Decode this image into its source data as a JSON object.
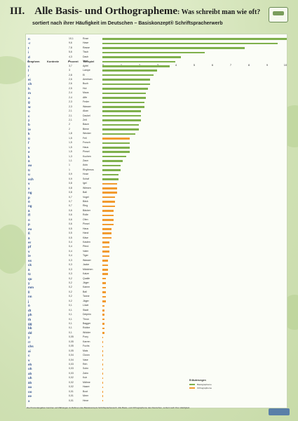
{
  "header": {
    "roman": "III.",
    "title": "Alle Basis- und Orthographeme",
    "question": ": Was schreibt man wie oft?",
    "subtitle": "sortiert nach ihrer Häufigkeit im Deutschen – Basiskonzept® Schriftspracherwerb"
  },
  "columns": {
    "graphem": "Graphem",
    "kontext": "Kontexte",
    "prozent": "Prozent",
    "beispiel": "Beispiel"
  },
  "colors": {
    "green": "#7fb04c",
    "orange": "#f29a2e"
  },
  "chart_data": {
    "type": "bar",
    "xlim": [
      0,
      10
    ],
    "ticks": [
      "0",
      "1",
      "2",
      "3",
      "4",
      "5",
      "6",
      "7",
      "8",
      "9",
      "10"
    ],
    "rows": [
      {
        "g": "n",
        "p": "",
        "v": 10.1,
        "ex": "Rose",
        "c": "green"
      },
      {
        "g": "-r",
        "p": "",
        "v": 9.6,
        "ex": "Hase",
        "c": "green"
      },
      {
        "g": "t",
        "p": "",
        "v": 7.8,
        "ex": "Rasse",
        "c": "green"
      },
      {
        "g": "i",
        "p": "",
        "v": 5.6,
        "ex": "Tisch",
        "c": "green"
      },
      {
        "g": "d",
        "p": "",
        "v": 4.3,
        "ex": "Dach",
        "c": "green"
      },
      {
        "g": "l",
        "p": "",
        "v": 4.0,
        "ex": "Insel",
        "c": "green"
      },
      {
        "g": "s",
        "p": "",
        "v": 3.7,
        "ex": "Apfel",
        "c": "green"
      },
      {
        "g": "l",
        "p": "",
        "v": 3.0,
        "ex": "Lampe",
        "c": "green"
      },
      {
        "g": "r",
        "p": "",
        "v": 2.8,
        "ex": "Ei",
        "c": "green"
      },
      {
        "g": "ei",
        "p": "",
        "v": 2.6,
        "ex": "Ameisen",
        "c": "green"
      },
      {
        "g": "ch",
        "p": "",
        "v": 2.6,
        "ex": "Buch",
        "c": "green"
      },
      {
        "g": "h",
        "p": "",
        "v": 2.5,
        "ex": "Hut",
        "c": "green"
      },
      {
        "g": "m",
        "p": "",
        "v": 2.4,
        "ex": "Maus",
        "c": "green"
      },
      {
        "g": "a",
        "p": "",
        "v": 2.4,
        "ex": "Affe",
        "c": "green"
      },
      {
        "g": "g",
        "p": "",
        "v": 2.3,
        "ex": "Feder",
        "c": "green"
      },
      {
        "g": "w",
        "p": "",
        "v": 2.3,
        "ex": "Wasser",
        "c": "green"
      },
      {
        "g": "o",
        "p": "",
        "v": 2.1,
        "ex": "Akan",
        "c": "green"
      },
      {
        "g": "c",
        "p": "",
        "v": 2.1,
        "ex": "Dackel",
        "c": "green"
      },
      {
        "g": "z",
        "p": "",
        "v": 2.1,
        "ex": "Zelt",
        "c": "green"
      },
      {
        "g": "b",
        "p": "",
        "v": 2.0,
        "ex": "Baum",
        "c": "green"
      },
      {
        "g": "ie",
        "p": "",
        "v": 2.0,
        "ex": "Biene",
        "c": "green"
      },
      {
        "g": "k",
        "p": "",
        "v": 1.8,
        "ex": "Wecker",
        "c": "green"
      },
      {
        "g": "ü",
        "p": "",
        "v": 1.5,
        "ex": "Fell",
        "c": "orange"
      },
      {
        "g": "f",
        "p": "",
        "v": 1.5,
        "ex": "Frosch",
        "c": "green"
      },
      {
        "g": "v",
        "p": "",
        "v": 1.5,
        "ex": "Haus",
        "c": "green"
      },
      {
        "g": "e",
        "p": "",
        "v": 1.5,
        "ex": "Pinsel",
        "c": "green"
      },
      {
        "g": "k",
        "p": "",
        "v": 1.3,
        "ex": "Kuchen",
        "c": "green"
      },
      {
        "g": "ä",
        "p": "",
        "v": 1.1,
        "ex": "Zaun",
        "c": "green"
      },
      {
        "g": "au",
        "p": "",
        "v": 1.0,
        "ex": "Auto",
        "c": "green"
      },
      {
        "g": "ü",
        "p": "",
        "v": 1.0,
        "ex": "Rhythmus",
        "c": "green"
      },
      {
        "g": "u",
        "p": "",
        "v": 0.9,
        "ex": "Hose",
        "c": "green"
      },
      {
        "g": "sch",
        "p": "",
        "v": 0.9,
        "ex": "Schaf",
        "c": "green"
      },
      {
        "g": "v",
        "p": "",
        "v": 0.8,
        "ex": "Igel",
        "c": "orange"
      },
      {
        "g": "x",
        "p": "",
        "v": 0.8,
        "ex": "Wiesen",
        "c": "orange"
      },
      {
        "g": "ng",
        "p": "",
        "v": 0.8,
        "ex": "Ball",
        "c": "orange"
      },
      {
        "g": "p",
        "p": "",
        "v": 0.7,
        "ex": "Vogel",
        "c": "orange"
      },
      {
        "g": "ö",
        "p": "",
        "v": 0.7,
        "ex": "Bäck",
        "c": "orange"
      },
      {
        "g": "ng",
        "p": "",
        "v": 0.7,
        "ex": "Ring",
        "c": "orange"
      },
      {
        "g": "ä",
        "p": "",
        "v": 0.6,
        "ex": "Bäcker",
        "c": "orange"
      },
      {
        "g": "ff",
        "p": "",
        "v": 0.6,
        "ex": "Rolle",
        "c": "orange"
      },
      {
        "g": "o",
        "p": "",
        "v": 0.6,
        "ex": "Ofen",
        "c": "orange"
      },
      {
        "g": "p",
        "p": "",
        "v": 0.6,
        "ex": "Pinsel",
        "c": "orange"
      },
      {
        "g": "eu",
        "p": "",
        "v": 0.5,
        "ex": "Haus",
        "c": "orange"
      },
      {
        "g": "ß",
        "p": "",
        "v": 0.5,
        "ex": "Hand",
        "c": "orange"
      },
      {
        "g": "ä",
        "p": "",
        "v": 0.5,
        "ex": "Käse",
        "c": "orange"
      },
      {
        "g": "er",
        "p": "",
        "v": 0.4,
        "ex": "Kasten",
        "c": "orange"
      },
      {
        "g": "pf",
        "p": "",
        "v": 0.4,
        "ex": "Pferd",
        "c": "orange"
      },
      {
        "g": "v",
        "p": "",
        "v": 0.4,
        "ex": "Vater",
        "c": "orange"
      },
      {
        "g": "ie",
        "p": "",
        "v": 0.4,
        "ex": "Tiger",
        "c": "orange"
      },
      {
        "g": "ss",
        "p": "",
        "v": 0.3,
        "ex": "Wasser",
        "c": "orange"
      },
      {
        "g": "ck",
        "p": "",
        "v": 0.3,
        "ex": "Jacke",
        "c": "orange"
      },
      {
        "g": "ä",
        "p": "",
        "v": 0.3,
        "ex": "Mädchen",
        "c": "orange"
      },
      {
        "g": "tz",
        "p": "",
        "v": 0.3,
        "ex": "Katze",
        "c": "orange"
      },
      {
        "g": "qu",
        "p": "",
        "v": 0.2,
        "ex": "Qualle",
        "c": "orange"
      },
      {
        "g": "y",
        "p": "",
        "v": 0.2,
        "ex": "Jäger",
        "c": "orange"
      },
      {
        "g": "mm",
        "p": "",
        "v": 0.2,
        "ex": "Kamm",
        "c": "orange"
      },
      {
        "g": "ll",
        "p": "",
        "v": 0.2,
        "ex": "Ball",
        "c": "orange"
      },
      {
        "g": "nn",
        "p": "",
        "v": 0.2,
        "ex": "Tanne",
        "c": "orange"
      },
      {
        "g": "j",
        "p": "",
        "v": 0.2,
        "ex": "Jäger",
        "c": "orange"
      },
      {
        "g": "ö",
        "p": "",
        "v": 0.1,
        "ex": "Löwe",
        "c": "orange"
      },
      {
        "g": "dt",
        "p": "",
        "v": 0.1,
        "ex": "Stadt",
        "c": "orange"
      },
      {
        "g": "ph",
        "p": "",
        "v": 0.1,
        "ex": "Delphin",
        "c": "orange"
      },
      {
        "g": "th",
        "p": "",
        "v": 0.1,
        "ex": "Thron",
        "c": "orange"
      },
      {
        "g": "gg",
        "p": "",
        "v": 0.1,
        "ex": "Bagger",
        "c": "orange"
      },
      {
        "g": "bb",
        "p": "",
        "v": 0.1,
        "ex": "Robbe",
        "c": "orange"
      },
      {
        "g": "dd",
        "p": "",
        "v": 0.1,
        "ex": "Widder",
        "c": "orange"
      },
      {
        "g": "y",
        "p": "",
        "v": 0.05,
        "ex": "Pony",
        "c": "orange"
      },
      {
        "g": "rr",
        "p": "",
        "v": 0.05,
        "ex": "Karren",
        "c": "orange"
      },
      {
        "g": "chs",
        "p": "",
        "v": 0.05,
        "ex": "Fuchs",
        "c": "orange"
      },
      {
        "g": "ai",
        "p": "",
        "v": 0.05,
        "ex": "Mais",
        "c": "orange"
      },
      {
        "g": "c",
        "p": "",
        "v": 0.04,
        "ex": "Clown",
        "c": "orange"
      },
      {
        "g": "v",
        "p": "",
        "v": 0.04,
        "ex": "Vase",
        "c": "orange"
      },
      {
        "g": "eh",
        "p": "",
        "v": 0.03,
        "ex": "Reh",
        "c": "orange"
      },
      {
        "g": "oh",
        "p": "",
        "v": 0.03,
        "ex": "Sohn",
        "c": "orange"
      },
      {
        "g": "ah",
        "p": "",
        "v": 0.03,
        "ex": "Zahn",
        "c": "orange"
      },
      {
        "g": "uh",
        "p": "",
        "v": 0.02,
        "ex": "Kuh",
        "c": "orange"
      },
      {
        "g": "äh",
        "p": "",
        "v": 0.02,
        "ex": "Mähne",
        "c": "orange"
      },
      {
        "g": "aa",
        "p": "",
        "v": 0.02,
        "ex": "Haare",
        "c": "orange"
      },
      {
        "g": "oo",
        "p": "",
        "v": 0.01,
        "ex": "Boot",
        "c": "orange"
      },
      {
        "g": "ee",
        "p": "",
        "v": 0.01,
        "ex": "Meer",
        "c": "orange"
      },
      {
        "g": "x",
        "p": "",
        "v": 0.01,
        "ex": "Hexe",
        "c": "orange"
      }
    ]
  },
  "legend": {
    "title": "Erläuterungen",
    "items": [
      {
        "label": "Basisgrapheme",
        "color": "#7fb04c"
      },
      {
        "label": "Orthographeme",
        "color": "#f29a2e"
      }
    ]
  },
  "footer": {
    "text": "Die Prozentangaben beruhen auf Zählungen im Rahmen des Basiskonzepts Schriftspracherwerb. Alle Basis- und Orthographeme des Deutschen, sortiert nach ihrer Häufigkeit."
  }
}
